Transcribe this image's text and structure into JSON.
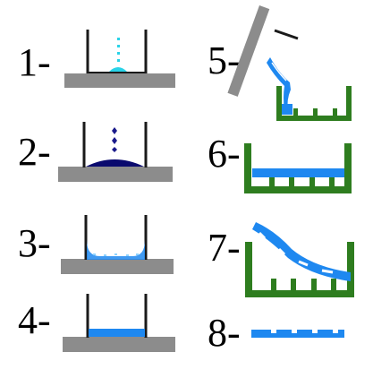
{
  "steps": [
    {
      "label": "1-"
    },
    {
      "label": "2-"
    },
    {
      "label": "3-"
    },
    {
      "label": "4-"
    },
    {
      "label": "5-"
    },
    {
      "label": "6-"
    },
    {
      "label": "7-"
    },
    {
      "label": "8-"
    }
  ],
  "colors": {
    "background": "#ffffff",
    "base": "#8c8c8c",
    "wall": "#1a1a1a",
    "mold": "#2e7d1f",
    "film": "#1e88f0",
    "drop_light": "#29d3e8",
    "drop_dark": "#1a1a8a",
    "coat": "#0a0a6e"
  }
}
